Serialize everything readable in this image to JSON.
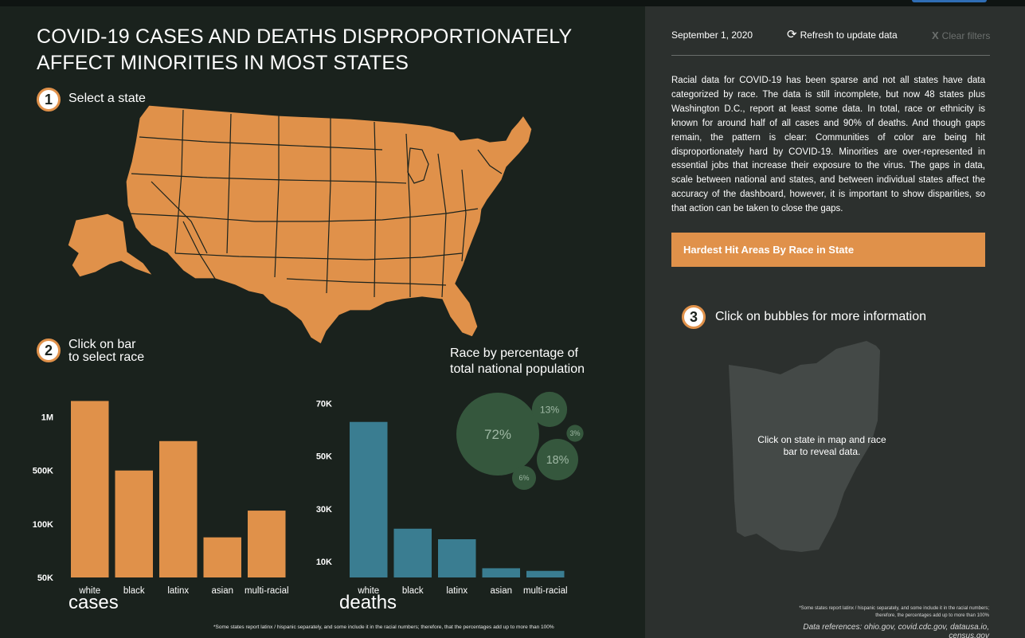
{
  "title": "COVID-19 CASES AND DEATHS DISPROPORTIONATELY AFFECT MINORITIES IN MOST STATES",
  "steps": {
    "one": {
      "num": "1",
      "label": "Select a state"
    },
    "two": {
      "num": "2",
      "label_line1": "Click on bar",
      "label_line2": "to select race"
    },
    "three": {
      "num": "3",
      "label": "Click on bubbles for more information"
    }
  },
  "bubble_title": "Race by percentage of total national population",
  "cases_label": "cases",
  "deaths_label": "deaths",
  "left_footnote": "*Some states report latinx / hispanic separately, and some include it in the racial numbers; therefore, that the percentages add up to more than 100%",
  "sidebar": {
    "date": "September 1, 2020",
    "refresh_label": "Refresh to update data",
    "clear_label": "Clear filters",
    "paragraph": "Racial data for COVID-19 has been sparse and not all states have data categorized by race. The data is still incomplete, but now 48 states plus Washington D.C., report at least some data. In total, race or ethnicity is known for around half of all cases and 90% of deaths. And though gaps remain, the pattern is clear: Communities of color are being hit disproportionately hard by COVID-19. Minorities are over-represented in essential jobs that increase their exposure to the virus. The gaps in data, scale between national and states, and between individual states affect the accuracy of the dashboard, however, it is important to show disparities, so that action can be taken to close the gaps.",
    "hardest_hit_label": "Hardest Hit Areas By Race in State",
    "reveal_text": "Click on state in map and race bar to reveal data.",
    "footnote": "*Some states report latinx / hispanic separately, and some include it in the racial numbers; therefore, the percentages add up to more than 100%",
    "references": "Data references: ohio.gov, covid.cdc.gov, datausa.io, census.gov"
  },
  "colors": {
    "accent": "#e0914a",
    "deaths": "#3a7d91",
    "bubble": "#35573d",
    "bubble_text": "#9fb8a4"
  },
  "icons": {
    "refresh": "refresh-icon",
    "clear": "close-icon"
  },
  "chart_data": [
    {
      "type": "bar",
      "title": "cases",
      "categories": [
        "white",
        "black",
        "latinx",
        "asian",
        "multi-racial"
      ],
      "tick_labels": [
        "1M",
        "500K",
        "100K",
        "50K"
      ],
      "tick_values": [
        3,
        2,
        1,
        0
      ],
      "values": [
        3.3,
        2.0,
        2.55,
        0.75,
        1.25
      ],
      "ylim": [
        0,
        3.5
      ]
    },
    {
      "type": "bar",
      "title": "deaths",
      "categories": [
        "white",
        "black",
        "latinx",
        "asian",
        "multi-racial"
      ],
      "tick_labels": [
        "70K",
        "50K",
        "30K",
        "10K"
      ],
      "tick_values": [
        70000,
        50000,
        30000,
        10000
      ],
      "values": [
        63000,
        22500,
        18500,
        7500,
        6500
      ],
      "ylim": [
        4000,
        75000
      ]
    },
    {
      "type": "bubble",
      "title": "Race by percentage of total national population",
      "labels": [
        "72%",
        "13%",
        "18%",
        "6%",
        "3%"
      ],
      "values": [
        72,
        13,
        18,
        6,
        3
      ]
    }
  ]
}
